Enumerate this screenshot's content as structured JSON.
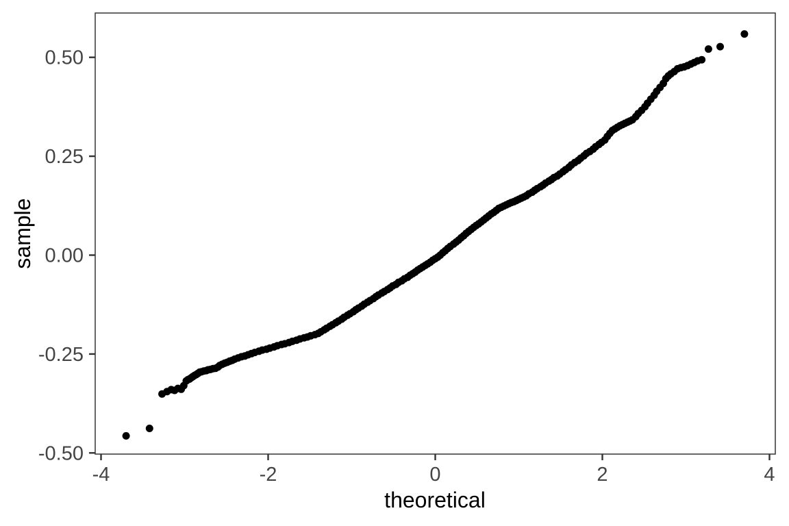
{
  "figure": {
    "background": "#ffffff"
  },
  "chart_data": {
    "type": "scatter",
    "title": "",
    "xlabel": "theoretical",
    "ylabel": "sample",
    "xlim": [
      -4.07,
      4.07
    ],
    "ylim": [
      -0.503,
      0.612
    ],
    "x_ticks": [
      -4,
      -2,
      0,
      2,
      4
    ],
    "x_tick_labels": [
      "-4",
      "-2",
      "0",
      "2",
      "4"
    ],
    "y_ticks": [
      -0.5,
      -0.25,
      0.0,
      0.25,
      0.5
    ],
    "y_tick_labels": [
      "-0.50",
      "-0.25",
      "0.00",
      "0.25",
      "0.50"
    ],
    "grid": false,
    "legend": "none",
    "point_color": "#000000",
    "point_radius": 5.5,
    "panel_border_color": "#333333",
    "tick_color": "#333333",
    "tick_label_color": "#444444",
    "axis_title_color": "#000000",
    "points": [
      [
        -3.7,
        -0.457
      ],
      [
        -3.42,
        -0.438
      ],
      [
        -3.27,
        -0.351
      ],
      [
        -3.21,
        -0.345
      ],
      [
        -3.16,
        -0.34
      ],
      [
        -3.12,
        -0.342
      ],
      [
        -3.08,
        -0.337
      ],
      [
        -3.04,
        -0.339
      ],
      [
        -3.01,
        -0.33
      ],
      [
        -2.98,
        -0.318
      ],
      [
        -2.96,
        -0.315
      ],
      [
        -2.94,
        -0.313
      ],
      [
        -2.92,
        -0.31
      ],
      [
        -2.9,
        -0.307
      ],
      [
        -2.88,
        -0.304
      ],
      [
        -2.86,
        -0.302
      ],
      [
        -2.84,
        -0.299
      ],
      [
        -2.82,
        -0.296
      ],
      [
        -2.8,
        -0.295
      ],
      [
        -2.77,
        -0.293
      ],
      [
        -2.74,
        -0.292
      ],
      [
        -2.72,
        -0.29
      ],
      [
        -2.69,
        -0.289
      ],
      [
        -2.66,
        -0.287
      ],
      [
        -2.63,
        -0.286
      ],
      [
        -2.6,
        -0.283
      ],
      [
        -2.58,
        -0.279
      ],
      [
        -2.55,
        -0.276
      ],
      [
        -2.52,
        -0.273
      ],
      [
        -2.49,
        -0.271
      ],
      [
        -2.46,
        -0.268
      ],
      [
        -2.43,
        -0.266
      ],
      [
        -2.4,
        -0.263
      ],
      [
        -2.36,
        -0.26
      ],
      [
        -2.32,
        -0.257
      ],
      [
        -2.28,
        -0.255
      ],
      [
        -2.24,
        -0.252
      ],
      [
        -2.2,
        -0.249
      ],
      [
        -2.16,
        -0.246
      ],
      [
        -2.11,
        -0.243
      ],
      [
        -2.07,
        -0.24
      ],
      [
        -2.02,
        -0.238
      ],
      [
        -1.98,
        -0.235
      ],
      [
        -1.93,
        -0.232
      ],
      [
        -1.89,
        -0.229
      ],
      [
        -1.84,
        -0.226
      ],
      [
        -1.8,
        -0.224
      ],
      [
        -1.75,
        -0.221
      ],
      [
        -1.71,
        -0.218
      ],
      [
        -1.66,
        -0.215
      ],
      [
        -1.62,
        -0.212
      ],
      [
        -1.57,
        -0.209
      ],
      [
        -1.53,
        -0.207
      ],
      [
        -1.49,
        -0.204
      ],
      [
        -1.44,
        -0.201
      ],
      [
        -1.4,
        -0.198
      ],
      [
        -1.37,
        -0.194
      ],
      [
        -1.33,
        -0.189
      ],
      [
        -1.3,
        -0.185
      ],
      [
        -1.26,
        -0.18
      ],
      [
        -1.23,
        -0.176
      ],
      [
        -1.19,
        -0.171
      ],
      [
        -1.16,
        -0.167
      ],
      [
        -1.12,
        -0.162
      ],
      [
        -1.09,
        -0.157
      ],
      [
        -1.05,
        -0.152
      ],
      [
        -1.02,
        -0.148
      ],
      [
        -0.98,
        -0.143
      ],
      [
        -0.95,
        -0.138
      ],
      [
        -0.92,
        -0.134
      ],
      [
        -0.88,
        -0.129
      ],
      [
        -0.85,
        -0.124
      ],
      [
        -0.81,
        -0.119
      ],
      [
        -0.78,
        -0.115
      ],
      [
        -0.74,
        -0.11
      ],
      [
        -0.71,
        -0.105
      ],
      [
        -0.68,
        -0.101
      ],
      [
        -0.64,
        -0.096
      ],
      [
        -0.61,
        -0.092
      ],
      [
        -0.57,
        -0.087
      ],
      [
        -0.54,
        -0.083
      ],
      [
        -0.51,
        -0.078
      ],
      [
        -0.47,
        -0.074
      ],
      [
        -0.44,
        -0.069
      ],
      [
        -0.4,
        -0.065
      ],
      [
        -0.37,
        -0.06
      ],
      [
        -0.33,
        -0.056
      ],
      [
        -0.3,
        -0.051
      ],
      [
        -0.27,
        -0.047
      ],
      [
        -0.24,
        -0.043
      ],
      [
        -0.21,
        -0.038
      ],
      [
        -0.18,
        -0.034
      ],
      [
        -0.15,
        -0.03
      ],
      [
        -0.12,
        -0.026
      ],
      [
        -0.09,
        -0.022
      ],
      [
        -0.06,
        -0.018
      ],
      [
        -0.03,
        -0.013
      ],
      [
        0.0,
        -0.009
      ],
      [
        0.03,
        -0.005
      ],
      [
        0.06,
        0.0
      ],
      [
        0.09,
        0.006
      ],
      [
        0.12,
        0.011
      ],
      [
        0.15,
        0.017
      ],
      [
        0.18,
        0.022
      ],
      [
        0.22,
        0.028
      ],
      [
        0.25,
        0.033
      ],
      [
        0.28,
        0.038
      ],
      [
        0.31,
        0.044
      ],
      [
        0.34,
        0.049
      ],
      [
        0.37,
        0.055
      ],
      [
        0.4,
        0.06
      ],
      [
        0.43,
        0.065
      ],
      [
        0.46,
        0.07
      ],
      [
        0.49,
        0.075
      ],
      [
        0.52,
        0.079
      ],
      [
        0.55,
        0.084
      ],
      [
        0.58,
        0.089
      ],
      [
        0.61,
        0.094
      ],
      [
        0.64,
        0.099
      ],
      [
        0.67,
        0.104
      ],
      [
        0.7,
        0.108
      ],
      [
        0.73,
        0.113
      ],
      [
        0.76,
        0.118
      ],
      [
        0.79,
        0.121
      ],
      [
        0.82,
        0.124
      ],
      [
        0.85,
        0.127
      ],
      [
        0.88,
        0.13
      ],
      [
        0.91,
        0.133
      ],
      [
        0.94,
        0.135
      ],
      [
        0.97,
        0.138
      ],
      [
        1.0,
        0.141
      ],
      [
        1.03,
        0.144
      ],
      [
        1.06,
        0.147
      ],
      [
        1.09,
        0.15
      ],
      [
        1.12,
        0.155
      ],
      [
        1.16,
        0.159
      ],
      [
        1.19,
        0.164
      ],
      [
        1.22,
        0.168
      ],
      [
        1.26,
        0.173
      ],
      [
        1.29,
        0.177
      ],
      [
        1.32,
        0.182
      ],
      [
        1.36,
        0.187
      ],
      [
        1.39,
        0.191
      ],
      [
        1.42,
        0.196
      ],
      [
        1.46,
        0.2
      ],
      [
        1.49,
        0.205
      ],
      [
        1.53,
        0.211
      ],
      [
        1.56,
        0.216
      ],
      [
        1.6,
        0.222
      ],
      [
        1.63,
        0.228
      ],
      [
        1.67,
        0.234
      ],
      [
        1.71,
        0.239
      ],
      [
        1.74,
        0.245
      ],
      [
        1.78,
        0.251
      ],
      [
        1.81,
        0.257
      ],
      [
        1.85,
        0.262
      ],
      [
        1.89,
        0.268
      ],
      [
        1.92,
        0.274
      ],
      [
        1.96,
        0.28
      ],
      [
        1.99,
        0.285
      ],
      [
        2.03,
        0.291
      ],
      [
        2.06,
        0.3
      ],
      [
        2.09,
        0.308
      ],
      [
        2.12,
        0.315
      ],
      [
        2.15,
        0.319
      ],
      [
        2.18,
        0.323
      ],
      [
        2.21,
        0.327
      ],
      [
        2.24,
        0.33
      ],
      [
        2.27,
        0.333
      ],
      [
        2.3,
        0.336
      ],
      [
        2.33,
        0.339
      ],
      [
        2.36,
        0.342
      ],
      [
        2.4,
        0.35
      ],
      [
        2.43,
        0.358
      ],
      [
        2.47,
        0.366
      ],
      [
        2.51,
        0.375
      ],
      [
        2.54,
        0.384
      ],
      [
        2.58,
        0.394
      ],
      [
        2.62,
        0.404
      ],
      [
        2.65,
        0.414
      ],
      [
        2.69,
        0.424
      ],
      [
        2.73,
        0.434
      ],
      [
        2.76,
        0.446
      ],
      [
        2.79,
        0.453
      ],
      [
        2.82,
        0.458
      ],
      [
        2.86,
        0.464
      ],
      [
        2.9,
        0.471
      ],
      [
        2.94,
        0.474
      ],
      [
        2.98,
        0.476
      ],
      [
        3.02,
        0.479
      ],
      [
        3.06,
        0.483
      ],
      [
        3.1,
        0.487
      ],
      [
        3.14,
        0.491
      ],
      [
        3.19,
        0.494
      ],
      [
        3.27,
        0.521
      ],
      [
        3.41,
        0.527
      ],
      [
        3.7,
        0.559
      ]
    ]
  }
}
